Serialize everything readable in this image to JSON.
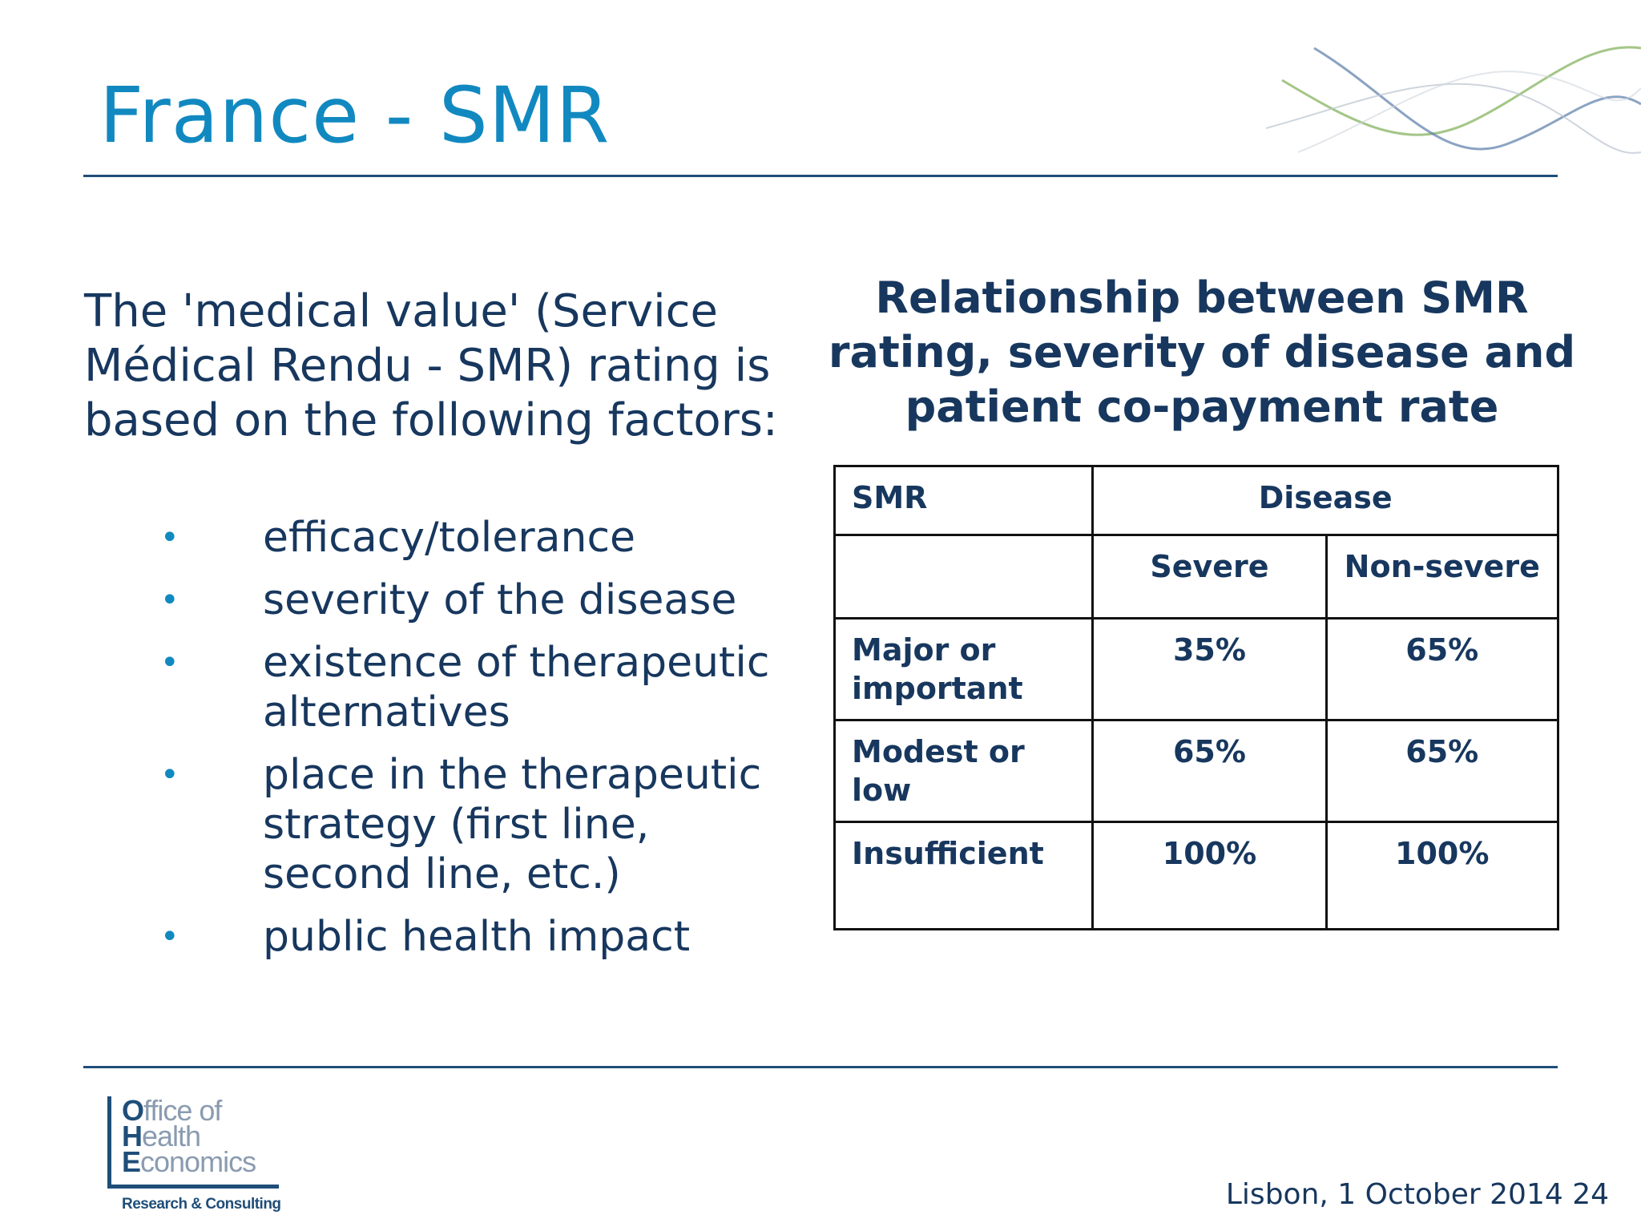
{
  "slide": {
    "title": "France - SMR",
    "intro": "The 'medical value' (Service Médical Rendu - SMR) rating is based on the following factors:",
    "bullets": [
      "efficacy/tolerance",
      "severity of the disease",
      "existence of therapeutic alternatives",
      "place in the therapeutic strategy (first line, second line, etc.)",
      "public health impact"
    ],
    "table_title": "Relationship between SMR rating, severity of disease and patient co-payment rate",
    "table": {
      "header_smr": "SMR",
      "header_disease": "Disease",
      "sub_severe": "Severe",
      "sub_nonsevere": "Non-severe",
      "rows": [
        {
          "label": "Major or important",
          "severe": "35%",
          "nonsevere": "65%"
        },
        {
          "label": "Modest or low",
          "severe": "65%",
          "nonsevere": "65%"
        },
        {
          "label": "Insufficient",
          "severe": "100%",
          "nonsevere": "100%"
        }
      ]
    },
    "logo": {
      "line1_initial": "O",
      "line1_rest": "ffice of",
      "line2_initial": "H",
      "line2_rest": "ealth",
      "line3_initial": "E",
      "line3_rest": "conomics",
      "tagline": "Research & Consulting"
    },
    "footer": "Lisbon, 1 October 2014 24",
    "colors": {
      "title": "#1189c0",
      "text": "#17375e",
      "rule": "#1f4e79"
    }
  }
}
